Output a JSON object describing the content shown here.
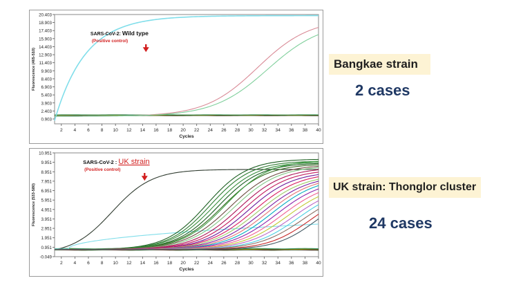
{
  "labels": {
    "strain1": "Bangkae strain",
    "cases1": "2 cases",
    "strain2": "UK strain: Thonglor cluster",
    "cases2": "24 cases"
  },
  "chart_data": [
    {
      "type": "line",
      "xlabel": "Cycles",
      "ylabel": "Fluorescence (465-510)",
      "xlim": [
        1,
        40
      ],
      "ylim": [
        0,
        20.403
      ],
      "xticks": [
        "2",
        "4",
        "6",
        "8",
        "10",
        "12",
        "14",
        "16",
        "18",
        "20",
        "22",
        "24",
        "26",
        "28",
        "30",
        "32",
        "34",
        "36",
        "38",
        "40"
      ],
      "yticks": [
        "0.903",
        "2.403",
        "3.903",
        "5.403",
        "6.903",
        "8.403",
        "9.903",
        "11.403",
        "12.903",
        "14.403",
        "15.903",
        "17.403",
        "18.903",
        "20.403"
      ],
      "annotation": {
        "prefix": "SARS-CoV-2: ",
        "emph": "Wild type",
        "sub": "(Positive control)",
        "arrow_x": 14.5,
        "arrow_y": 13.4
      },
      "flat_colors": [
        "#2f7d32",
        "#8b3a3a",
        "#333333",
        "#6b8e23",
        "#b8860b",
        "#2e8b57"
      ],
      "series": [
        {
          "color": "#80deea",
          "curve": "control",
          "base": 0.6,
          "top": 20.2,
          "mid": 8.5,
          "k": 0.22
        },
        {
          "color": "#d98a96",
          "curve": "sigmoid",
          "base": 1.4,
          "top": 19.6,
          "mid": 31.0,
          "k": 0.26
        },
        {
          "color": "#7fcf9b",
          "curve": "sigmoid",
          "base": 1.4,
          "top": 19.0,
          "mid": 32.5,
          "k": 0.25
        }
      ]
    },
    {
      "type": "line",
      "xlabel": "Cycles",
      "ylabel": "Fluorescence (533-580)",
      "xlim": [
        1,
        40
      ],
      "ylim": [
        -0.049,
        10.951
      ],
      "xticks": [
        "2",
        "4",
        "6",
        "8",
        "10",
        "12",
        "14",
        "16",
        "18",
        "20",
        "22",
        "24",
        "26",
        "28",
        "30",
        "32",
        "34",
        "36",
        "38",
        "40"
      ],
      "yticks": [
        "-0.049",
        "0.951",
        "1.951",
        "2.951",
        "3.951",
        "4.951",
        "5.951",
        "6.951",
        "7.951",
        "8.951",
        "9.951",
        "10.951"
      ],
      "annotation": {
        "prefix": "SARS-CoV-2 : ",
        "emph": "UK strain",
        "sub": "(Positive control)",
        "arrow_x": 14.3,
        "arrow_y": 8.0
      },
      "flat_colors": [
        "#2f7d32",
        "#8b3a3a",
        "#333333",
        "#6b8e23",
        "#b8860b",
        "#2e8b57"
      ],
      "series": [
        {
          "color": "#2f3b2f",
          "curve": "sigmoid",
          "base": 0.2,
          "top": 9.2,
          "mid": 9.5,
          "k": 0.34
        },
        {
          "color": "#80deea",
          "curve": "linear",
          "base": 0.75,
          "top": 3.4,
          "start": 3.0
        },
        {
          "color": "#1b5e20",
          "curve": "sigmoid",
          "base": 0.7,
          "top": 10.3,
          "mid": 23.5,
          "k": 0.33
        },
        {
          "color": "#2e7d32",
          "curve": "sigmoid",
          "base": 0.7,
          "top": 10.1,
          "mid": 24.0,
          "k": 0.33
        },
        {
          "color": "#388e3c",
          "curve": "sigmoid",
          "base": 0.7,
          "top": 10.0,
          "mid": 24.6,
          "k": 0.32
        },
        {
          "color": "#1b5e20",
          "curve": "sigmoid",
          "base": 0.7,
          "top": 9.9,
          "mid": 25.2,
          "k": 0.32
        },
        {
          "color": "#33691e",
          "curve": "sigmoid",
          "base": 0.7,
          "top": 9.8,
          "mid": 25.8,
          "k": 0.31
        },
        {
          "color": "#43a047",
          "curve": "sigmoid",
          "base": 0.7,
          "top": 10.2,
          "mid": 26.3,
          "k": 0.31
        },
        {
          "color": "#6d4c41",
          "curve": "sigmoid",
          "base": 0.7,
          "top": 9.7,
          "mid": 26.9,
          "k": 0.3
        },
        {
          "color": "#81c784",
          "curve": "sigmoid",
          "base": 0.7,
          "top": 9.6,
          "mid": 27.5,
          "k": 0.3
        },
        {
          "color": "#ad1457",
          "curve": "sigmoid",
          "base": 0.7,
          "top": 9.4,
          "mid": 28.2,
          "k": 0.3
        },
        {
          "color": "#c2185b",
          "curve": "sigmoid",
          "base": 0.7,
          "top": 9.2,
          "mid": 28.9,
          "k": 0.3
        },
        {
          "color": "#6a1b9a",
          "curve": "sigmoid",
          "base": 0.7,
          "top": 9.0,
          "mid": 29.6,
          "k": 0.3
        },
        {
          "color": "#d81b60",
          "curve": "sigmoid",
          "base": 0.7,
          "top": 8.9,
          "mid": 30.4,
          "k": 0.29
        },
        {
          "color": "#9ccc65",
          "curve": "sigmoid",
          "base": 0.7,
          "top": 8.7,
          "mid": 31.0,
          "k": 0.29
        },
        {
          "color": "#7b1fa2",
          "curve": "sigmoid",
          "base": 0.7,
          "top": 8.6,
          "mid": 31.7,
          "k": 0.29
        },
        {
          "color": "#e57373",
          "curve": "sigmoid",
          "base": 0.7,
          "top": 8.5,
          "mid": 32.4,
          "k": 0.29
        },
        {
          "color": "#00acc1",
          "curve": "sigmoid",
          "base": 0.7,
          "top": 8.4,
          "mid": 33.1,
          "k": 0.29
        },
        {
          "color": "#8e24aa",
          "curve": "sigmoid",
          "base": 0.7,
          "top": 8.2,
          "mid": 33.8,
          "k": 0.29
        },
        {
          "color": "#f06292",
          "curve": "sigmoid",
          "base": 0.7,
          "top": 8.0,
          "mid": 34.6,
          "k": 0.29
        },
        {
          "color": "#c0ca33",
          "curve": "sigmoid",
          "base": 0.7,
          "top": 7.8,
          "mid": 35.4,
          "k": 0.29
        },
        {
          "color": "#ba68c8",
          "curve": "sigmoid",
          "base": 0.7,
          "top": 7.6,
          "mid": 36.2,
          "k": 0.29
        },
        {
          "color": "#4dd0e1",
          "curve": "sigmoid",
          "base": 0.7,
          "top": 7.4,
          "mid": 37.0,
          "k": 0.3
        },
        {
          "color": "#8d6e63",
          "curve": "sigmoid",
          "base": 0.7,
          "top": 7.2,
          "mid": 37.8,
          "k": 0.3
        },
        {
          "color": "#c62828",
          "curve": "sigmoid",
          "base": 0.7,
          "top": 7.0,
          "mid": 38.8,
          "k": 0.32
        },
        {
          "color": "#455a64",
          "curve": "sigmoid",
          "base": 0.7,
          "top": 6.8,
          "mid": 39.6,
          "k": 0.34
        }
      ]
    }
  ]
}
